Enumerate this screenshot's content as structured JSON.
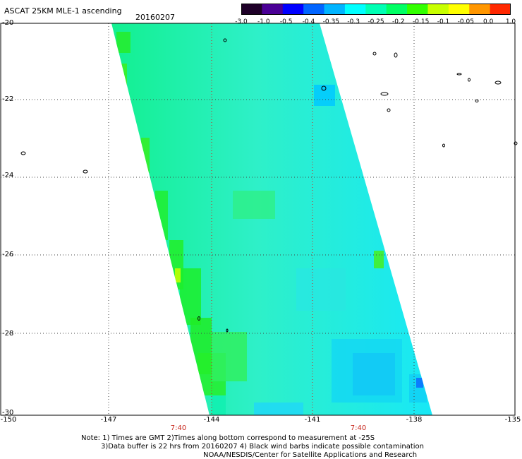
{
  "header": {
    "title": "ASCAT 25KM MLE-1 ascending",
    "date": "20160207"
  },
  "colorbar": {
    "labels": [
      "-3.0",
      "-1.0",
      "-0.5",
      "-0.4",
      "-0.35",
      "-0.3",
      "-0.25",
      "-0.2",
      "-0.15",
      "-0.1",
      "-0.05",
      "0.0",
      "1.0"
    ],
    "colors": [
      "#1e0028",
      "#4a0096",
      "#0000ff",
      "#0064ff",
      "#00b4ff",
      "#00ffff",
      "#00ffb4",
      "#00ff64",
      "#32ff00",
      "#c8ff00",
      "#ffff00",
      "#ff9600",
      "#ff2800"
    ]
  },
  "axes": {
    "lat_labels": [
      "-20",
      "-22",
      "-24",
      "-26",
      "-28",
      "-30"
    ],
    "lon_labels": [
      "-150",
      "-147",
      "-144",
      "-141",
      "-138",
      "-135"
    ],
    "time_labels": [
      "7:40",
      "7:40"
    ]
  },
  "notes": {
    "line1": "Note: 1) Times are GMT 2)Times along bottom correspond to measurement at -25S",
    "line2": "3)Data buffer is 22 hrs from 20160207 4) Black wind barbs indicate possible contamination",
    "line3": "NOAA/NESDIS/Center for Satellite Applications and Research"
  }
}
